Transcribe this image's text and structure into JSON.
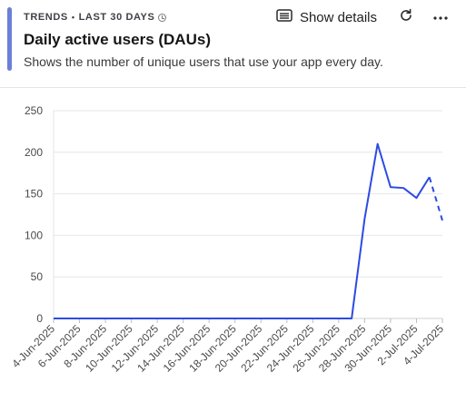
{
  "header": {
    "trends_label": "TRENDS",
    "bullet": "•",
    "period_label": "LAST 30 DAYS",
    "title": "Daily active users (DAUs)",
    "subtitle": "Shows the number of unique users that use your app every day."
  },
  "toolbar": {
    "show_details_label": "Show details",
    "icons": [
      "table-icon",
      "refresh-icon",
      "more-icon",
      "clock-icon"
    ]
  },
  "colors": {
    "accent": "#6b7fd7",
    "series": "#2b4be3",
    "grid": "#e6e6e6"
  },
  "chart_data": {
    "type": "line",
    "ylim": [
      0,
      250
    ],
    "y_ticks": [
      0,
      50,
      100,
      150,
      200,
      250
    ],
    "x_tick_labels": [
      "4-Jun-2025",
      "6-Jun-2025",
      "8-Jun-2025",
      "10-Jun-2025",
      "12-Jun-2025",
      "14-Jun-2025",
      "16-Jun-2025",
      "18-Jun-2025",
      "20-Jun-2025",
      "22-Jun-2025",
      "24-Jun-2025",
      "26-Jun-2025",
      "28-Jun-2025",
      "30-Jun-2025",
      "2-Jul-2025",
      "4-Jul-2025"
    ],
    "x": [
      "4-Jun-2025",
      "5-Jun-2025",
      "6-Jun-2025",
      "7-Jun-2025",
      "8-Jun-2025",
      "9-Jun-2025",
      "10-Jun-2025",
      "11-Jun-2025",
      "12-Jun-2025",
      "13-Jun-2025",
      "14-Jun-2025",
      "15-Jun-2025",
      "16-Jun-2025",
      "17-Jun-2025",
      "18-Jun-2025",
      "19-Jun-2025",
      "20-Jun-2025",
      "21-Jun-2025",
      "22-Jun-2025",
      "23-Jun-2025",
      "24-Jun-2025",
      "25-Jun-2025",
      "26-Jun-2025",
      "27-Jun-2025",
      "28-Jun-2025",
      "29-Jun-2025",
      "30-Jun-2025",
      "1-Jul-2025",
      "2-Jul-2025",
      "3-Jul-2025",
      "4-Jul-2025"
    ],
    "series": [
      {
        "values": [
          0,
          0,
          0,
          0,
          0,
          0,
          0,
          0,
          0,
          0,
          0,
          0,
          0,
          0,
          0,
          0,
          0,
          0,
          0,
          0,
          0,
          0,
          0,
          0,
          120,
          210,
          158,
          157,
          145,
          170,
          118
        ],
        "dashed_from": "3-Jul-2025"
      }
    ]
  }
}
